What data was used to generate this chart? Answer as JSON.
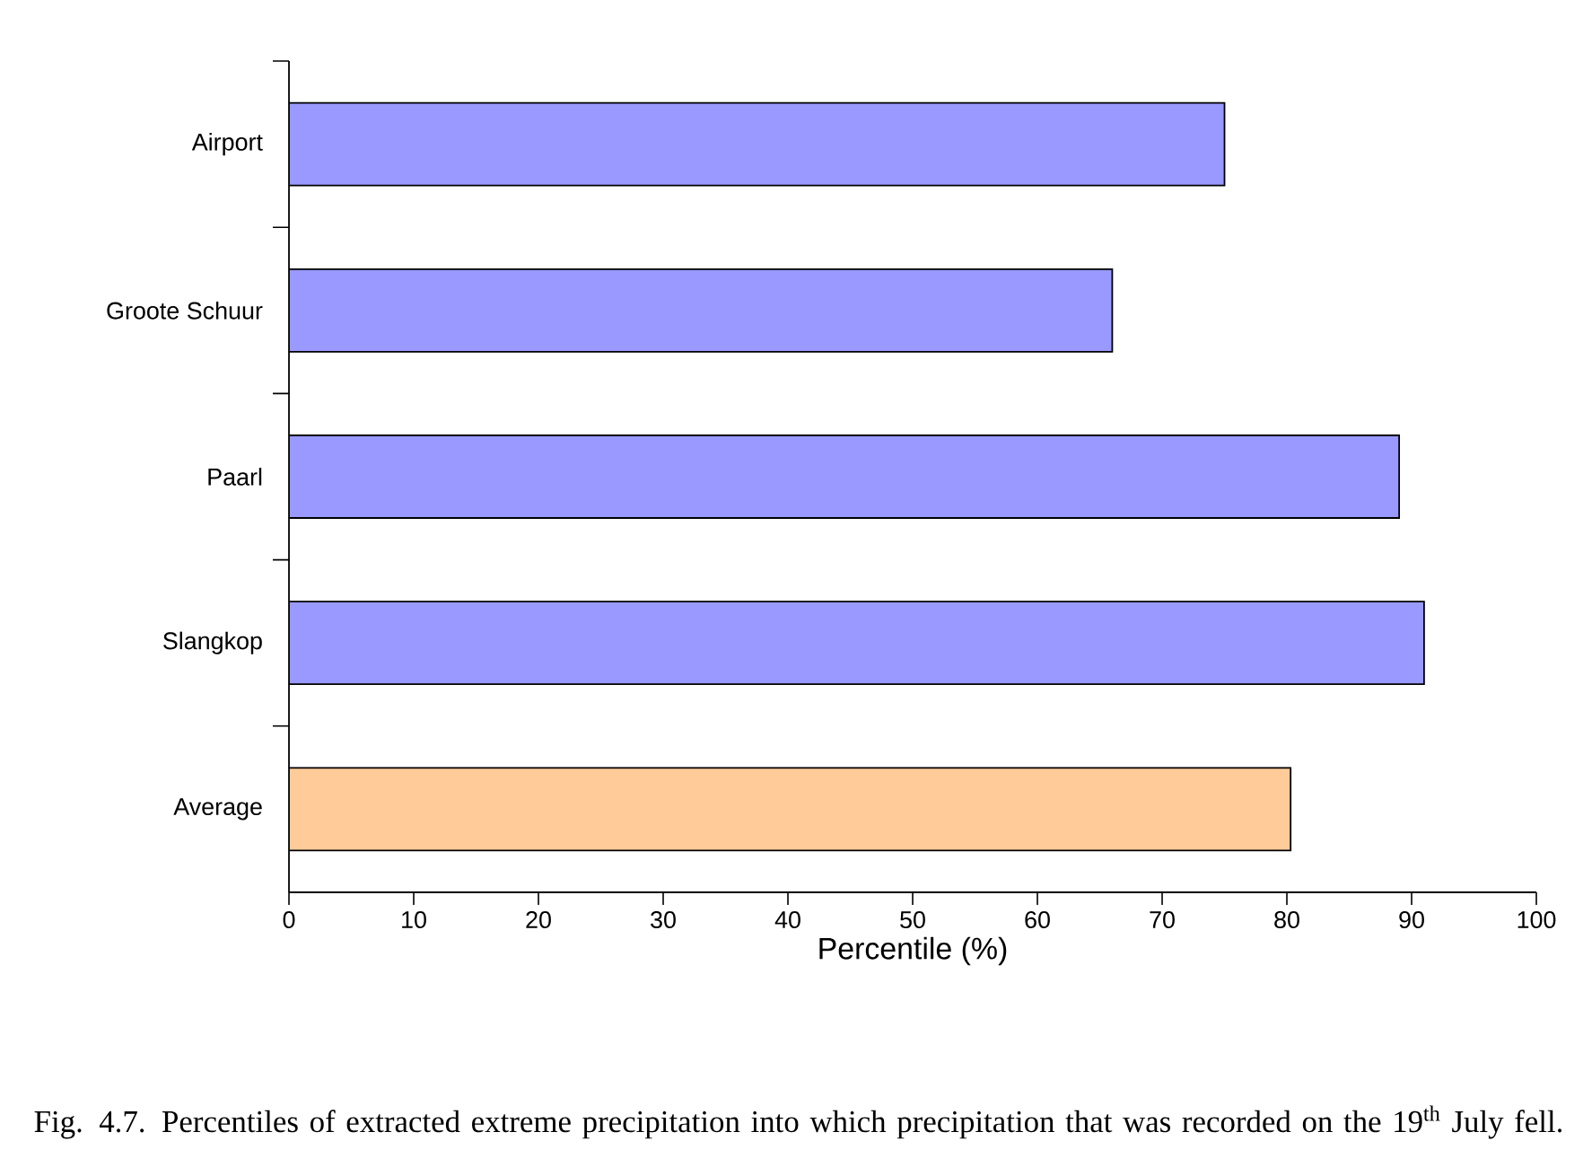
{
  "chart_data": {
    "type": "bar",
    "orientation": "horizontal",
    "categories": [
      "Airport",
      "Groote Schuur",
      "Paarl",
      "Slangkop",
      "Average"
    ],
    "values": [
      75,
      66,
      89,
      91,
      80.3
    ],
    "colors": [
      "#9999ff",
      "#9999ff",
      "#9999ff",
      "#9999ff",
      "#ffcc99"
    ],
    "xlabel": "Percentile (%)",
    "xlim": [
      0,
      100
    ],
    "xticks": [
      0,
      10,
      20,
      30,
      40,
      50,
      60,
      70,
      80,
      90,
      100
    ],
    "annotations": [
      "Fig. 4.7. Percentiles of extracted extreme precipitation into which precipitation that was recorded on the 19$^{th}$ July fell."
    ]
  }
}
